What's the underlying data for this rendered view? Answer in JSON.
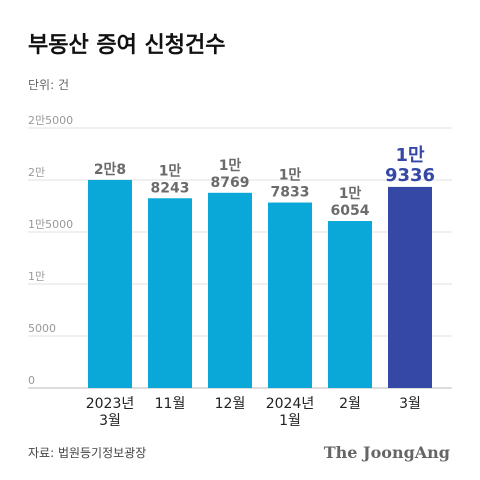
{
  "chart_data": {
    "type": "bar",
    "title": "부동산 증여 신청건수",
    "subtitle": "단위: 건",
    "source": "자료: 법원등기정보광장",
    "logo": "The JoongAng",
    "categories": [
      "2023년\n3월",
      "11월",
      "12월",
      "2024년\n1월",
      "2월",
      "3월"
    ],
    "values": [
      20008,
      18243,
      18769,
      17833,
      16054,
      19336
    ],
    "value_labels": [
      "2만8",
      "1만\n8243",
      "1만\n8769",
      "1만\n7833",
      "1만\n6054",
      "1만\n9336"
    ],
    "colors": [
      "#0aa8d8",
      "#0aa8d8",
      "#0aa8d8",
      "#0aa8d8",
      "#0aa8d8",
      "#3548a6"
    ],
    "value_label_colors": [
      "#6b6b6b",
      "#6b6b6b",
      "#6b6b6b",
      "#6b6b6b",
      "#6b6b6b",
      "#3548a6"
    ],
    "ylim": [
      0,
      25000
    ],
    "yticks": [
      0,
      5000,
      {
        "value": 10000,
        "label": "1만"
      },
      {
        "value": 15000,
        "label": "1만5000"
      },
      {
        "value": 20000,
        "label": "2만"
      },
      {
        "value": 25000,
        "label": "2만5000"
      }
    ],
    "grid": true
  }
}
